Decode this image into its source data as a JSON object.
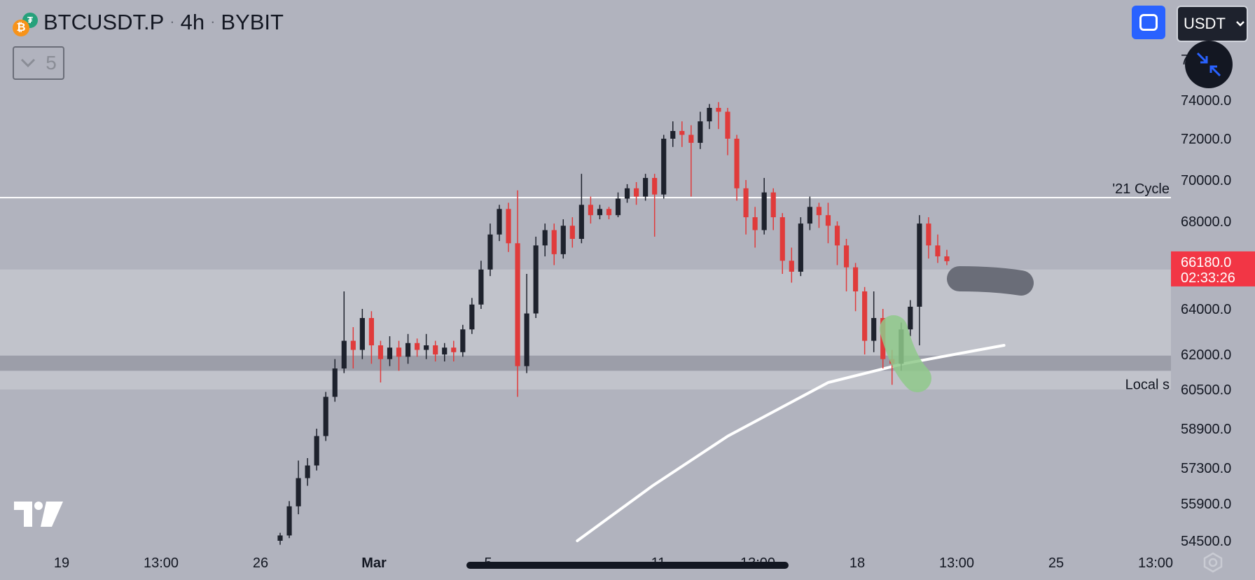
{
  "header": {
    "symbol": "BTCUSDT.P",
    "interval": "4h",
    "exchange": "BYBIT"
  },
  "toolbar": {
    "collapse_count": "5",
    "currency": "USDT"
  },
  "colors": {
    "up": "#1e222d",
    "down": "#e03b3b",
    "price_tag": "#f23645",
    "background": "#b1b3be",
    "zone": "#c1c3cb",
    "band": "#9c9ea9"
  },
  "chart_data": {
    "type": "candlestick",
    "y_axis": {
      "labels": [
        "74000.0",
        "72000.0",
        "70000.0",
        "68000.0",
        "64000.0",
        "62000.0",
        "60500.0",
        "58900.0",
        "57300.0",
        "55900.0",
        "54500.0"
      ],
      "values": [
        74000,
        72000,
        70000,
        68000,
        64000,
        62000,
        60500,
        58900,
        57300,
        55900,
        54500
      ],
      "top_partial_label": "76000.0"
    },
    "x_axis": {
      "labels": [
        "19",
        "13:00",
        "26",
        "Mar",
        "5",
        "11",
        "13:00",
        "18",
        "13:00",
        "25",
        "13:00"
      ]
    },
    "last_price": {
      "value": "66180.0",
      "countdown": "02:33:26"
    },
    "horizontal_lines": [
      {
        "label": "'21 Cycle",
        "value": 69150
      }
    ],
    "zones": [
      {
        "label": "Local s",
        "from": 60500,
        "to": 65800
      },
      {
        "label": "",
        "from": 61300,
        "to": 61950
      }
    ],
    "moving_average": [
      [
        0.46,
        54500
      ],
      [
        0.52,
        56600
      ],
      [
        0.58,
        58600
      ],
      [
        0.66,
        60800
      ],
      [
        0.72,
        61600
      ],
      [
        0.78,
        62200
      ],
      [
        0.8,
        62400
      ]
    ],
    "candles": [
      [
        54500,
        54700,
        54350,
        54800
      ],
      [
        54700,
        55800,
        54600,
        56000
      ],
      [
        55800,
        56900,
        55500,
        57600
      ],
      [
        56900,
        57400,
        56600,
        57700
      ],
      [
        57400,
        58600,
        57200,
        58900
      ],
      [
        58600,
        60200,
        58400,
        60400
      ],
      [
        60200,
        61400,
        60000,
        61800
      ],
      [
        61400,
        62600,
        61200,
        64800
      ],
      [
        62600,
        62200,
        61400,
        63200
      ],
      [
        62200,
        63600,
        61800,
        64000
      ],
      [
        63600,
        62400,
        61600,
        63900
      ],
      [
        62400,
        61800,
        60800,
        62600
      ],
      [
        61800,
        62300,
        61500,
        62800
      ],
      [
        62300,
        61900,
        61300,
        62600
      ],
      [
        61900,
        62500,
        61600,
        62900
      ],
      [
        62500,
        62200,
        61900,
        62700
      ],
      [
        62200,
        62400,
        61800,
        62900
      ],
      [
        62400,
        62000,
        61700,
        62600
      ],
      [
        62000,
        62300,
        61700,
        62500
      ],
      [
        62300,
        62100,
        61700,
        62600
      ],
      [
        62100,
        63100,
        61900,
        63300
      ],
      [
        63100,
        64200,
        62900,
        64500
      ],
      [
        64200,
        65800,
        64000,
        66200
      ],
      [
        65800,
        67400,
        65500,
        67900
      ],
      [
        67400,
        68600,
        67100,
        68800
      ],
      [
        68600,
        67000,
        66600,
        68900
      ],
      [
        67000,
        61500,
        60200,
        69500
      ],
      [
        61500,
        63800,
        61200,
        65600
      ],
      [
        63800,
        66900,
        63600,
        67300
      ],
      [
        66900,
        67600,
        66400,
        67900
      ],
      [
        67600,
        66500,
        66000,
        67900
      ],
      [
        66500,
        67800,
        66300,
        68100
      ],
      [
        67800,
        67200,
        66800,
        68200
      ],
      [
        67200,
        68800,
        67000,
        70300
      ],
      [
        68800,
        68300,
        67900,
        69200
      ],
      [
        68300,
        68600,
        68100,
        68800
      ],
      [
        68600,
        68300,
        68100,
        68700
      ],
      [
        68300,
        69100,
        68200,
        69400
      ],
      [
        69100,
        69600,
        68900,
        69800
      ],
      [
        69600,
        69200,
        68800,
        69900
      ],
      [
        69200,
        70100,
        69000,
        70300
      ],
      [
        70100,
        69300,
        67300,
        70300
      ],
      [
        69300,
        72000,
        69100,
        72200
      ],
      [
        72000,
        72400,
        71600,
        72900
      ],
      [
        72400,
        72200,
        71600,
        72900
      ],
      [
        72200,
        71800,
        69200,
        72700
      ],
      [
        71800,
        72900,
        71500,
        73400
      ],
      [
        72900,
        73600,
        72500,
        73800
      ],
      [
        73600,
        73400,
        72500,
        73900
      ],
      [
        73400,
        72000,
        71200,
        73600
      ],
      [
        72000,
        69600,
        69000,
        72200
      ],
      [
        69600,
        68200,
        67400,
        70000
      ],
      [
        68200,
        67600,
        66800,
        68700
      ],
      [
        67600,
        69400,
        67400,
        70100
      ],
      [
        69400,
        68200,
        67600,
        69600
      ],
      [
        68200,
        66200,
        65600,
        68400
      ],
      [
        66200,
        65700,
        65200,
        66800
      ],
      [
        65700,
        67900,
        65500,
        68200
      ],
      [
        67900,
        68700,
        67600,
        69200
      ],
      [
        68700,
        68300,
        67700,
        68900
      ],
      [
        68300,
        67800,
        67000,
        68900
      ],
      [
        67800,
        66900,
        66000,
        68000
      ],
      [
        66900,
        65900,
        64800,
        67200
      ],
      [
        65900,
        64800,
        63900,
        66100
      ],
      [
        64800,
        62600,
        62000,
        65000
      ],
      [
        62600,
        63600,
        62100,
        64800
      ],
      [
        63600,
        61800,
        61400,
        64000
      ],
      [
        61800,
        61600,
        60700,
        62200
      ],
      [
        61600,
        63100,
        61300,
        63400
      ],
      [
        63100,
        64100,
        62800,
        64400
      ],
      [
        64100,
        67900,
        62400,
        68300
      ],
      [
        67900,
        66900,
        66300,
        68200
      ],
      [
        66900,
        66400,
        66100,
        67400
      ],
      [
        66400,
        66180,
        66000,
        66700
      ]
    ]
  },
  "icons": {
    "fullscreen": "fullscreen-icon",
    "minimize": "minimize-arrows-icon",
    "settings": "settings-hexagon-icon",
    "logo": "tradingview-logo-icon"
  }
}
